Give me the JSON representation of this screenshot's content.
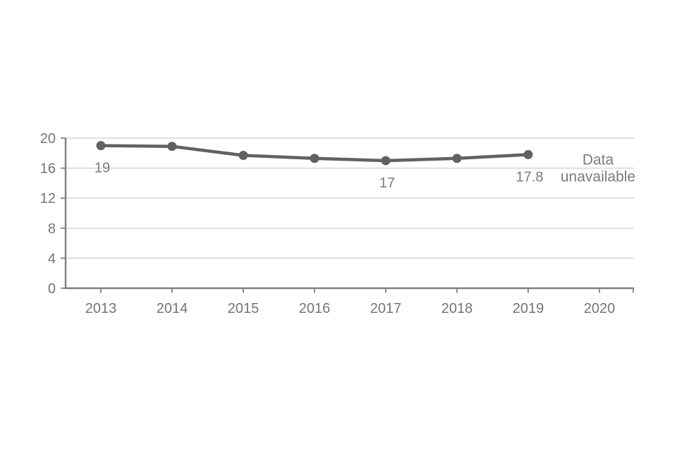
{
  "chart_data": {
    "type": "line",
    "categories": [
      "2013",
      "2014",
      "2015",
      "2016",
      "2017",
      "2018",
      "2019",
      "2020"
    ],
    "series": [
      {
        "name": "value",
        "values": [
          19,
          18.9,
          17.7,
          17.3,
          17,
          17.3,
          17.8,
          null
        ]
      }
    ],
    "title": "",
    "xlabel": "",
    "ylabel": "",
    "ylim": [
      0,
      20
    ],
    "yticks": [
      0,
      4,
      8,
      12,
      16,
      20
    ],
    "grid": "horizontal-light",
    "legend": "none",
    "point_labels": [
      {
        "category": "2013",
        "text": "19"
      },
      {
        "category": "2017",
        "text": "17"
      },
      {
        "category": "2019",
        "text": "17.8"
      }
    ],
    "annotation": {
      "category": "2020",
      "lines": [
        "Data",
        "unavailable"
      ]
    },
    "colors": {
      "line": "#616161",
      "marker": "#616161",
      "axis": "#808080",
      "gridline": "#d6d6d6",
      "tick_label": "#757575",
      "data_label": "#7b7b7b"
    }
  }
}
